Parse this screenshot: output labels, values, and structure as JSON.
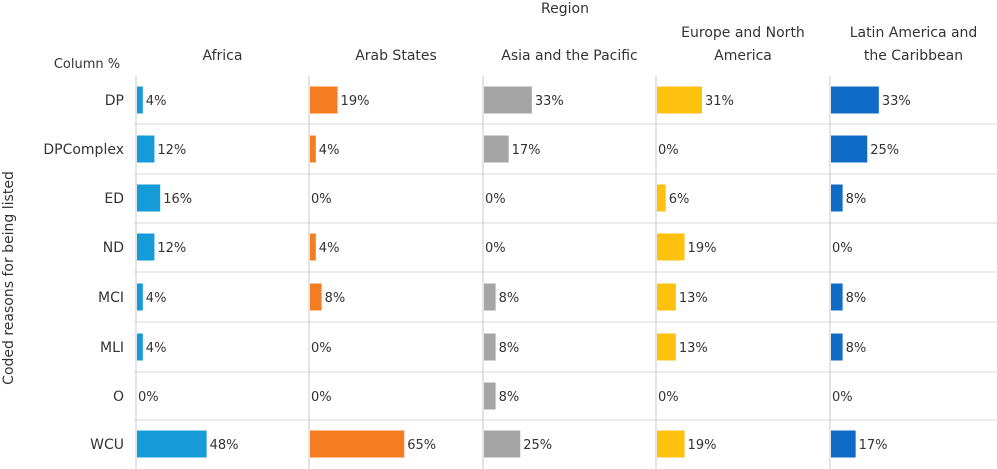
{
  "chart_data": {
    "type": "bar",
    "orientation": "horizontal",
    "layout": "small-multiples",
    "title": "Region",
    "corner_label": "Column %",
    "ylabel": "Coded reasons for being listed",
    "xlim": [
      0,
      100
    ],
    "value_suffix": "%",
    "grid": false,
    "legend": "none",
    "categories": [
      "DP",
      "DPComplex",
      "ED",
      "ND",
      "MCI",
      "MLI",
      "O",
      "WCU"
    ],
    "series": [
      {
        "name": "Africa",
        "color": "#159bd7",
        "values": [
          4,
          12,
          16,
          12,
          4,
          4,
          0,
          48
        ]
      },
      {
        "name": "Arab States",
        "color": "#f47d22",
        "values": [
          19,
          4,
          0,
          4,
          8,
          0,
          0,
          65
        ]
      },
      {
        "name": "Asia and the Pacific",
        "color": "#a5a5a5",
        "values": [
          33,
          17,
          0,
          0,
          8,
          8,
          8,
          25
        ]
      },
      {
        "name": "Europe and North America",
        "color": "#fec10e",
        "values": [
          31,
          0,
          6,
          19,
          13,
          13,
          0,
          19
        ]
      },
      {
        "name": "Latin America and the Caribbean",
        "color": "#0f6cc6",
        "values": [
          33,
          25,
          8,
          0,
          8,
          8,
          0,
          17
        ]
      }
    ]
  }
}
